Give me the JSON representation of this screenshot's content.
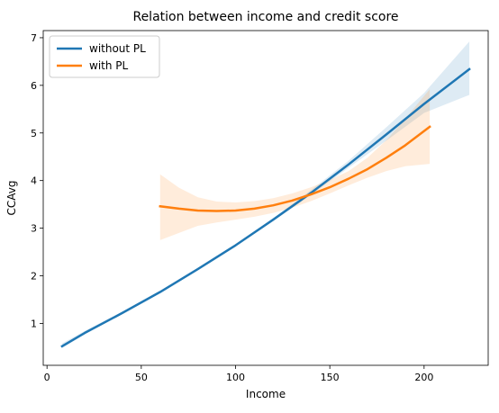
{
  "chart_data": {
    "type": "line",
    "title": "Relation between income and credit score",
    "xlabel": "Income",
    "ylabel": "CCAvg",
    "xlim": [
      -2,
      234
    ],
    "ylim": [
      0.12,
      7.15
    ],
    "xticks": [
      0,
      50,
      100,
      150,
      200
    ],
    "yticks": [
      1,
      2,
      3,
      4,
      5,
      6,
      7
    ],
    "grid": false,
    "legend": "top-left",
    "series": [
      {
        "name": "without PL",
        "color": "#1f77b4",
        "band_color": "#1f77b4",
        "x": [
          8,
          20,
          40,
          60,
          80,
          100,
          120,
          140,
          160,
          180,
          200,
          224
        ],
        "y": [
          0.52,
          0.8,
          1.22,
          1.66,
          2.14,
          2.64,
          3.18,
          3.74,
          4.34,
          4.97,
          5.61,
          6.34
        ],
        "ci_lower": [
          0.48,
          0.77,
          1.2,
          1.64,
          2.12,
          2.62,
          3.15,
          3.7,
          4.27,
          4.84,
          5.42,
          5.8
        ],
        "ci_upper": [
          0.58,
          0.84,
          1.25,
          1.68,
          2.16,
          2.66,
          3.21,
          3.8,
          4.42,
          5.12,
          5.84,
          6.92
        ]
      },
      {
        "name": "with PL",
        "color": "#ff7f0e",
        "band_color": "#ff7f0e",
        "x": [
          60,
          70,
          80,
          90,
          100,
          110,
          120,
          130,
          140,
          150,
          160,
          170,
          180,
          190,
          203
        ],
        "y": [
          3.46,
          3.41,
          3.37,
          3.36,
          3.37,
          3.41,
          3.48,
          3.58,
          3.71,
          3.86,
          4.04,
          4.24,
          4.48,
          4.74,
          5.13
        ],
        "ci_lower": [
          2.75,
          2.9,
          3.05,
          3.12,
          3.18,
          3.24,
          3.32,
          3.43,
          3.57,
          3.73,
          3.9,
          4.06,
          4.2,
          4.3,
          4.35
        ],
        "ci_upper": [
          4.13,
          3.85,
          3.65,
          3.56,
          3.54,
          3.57,
          3.63,
          3.73,
          3.86,
          4.01,
          4.2,
          4.48,
          4.85,
          5.3,
          5.92
        ]
      }
    ]
  }
}
